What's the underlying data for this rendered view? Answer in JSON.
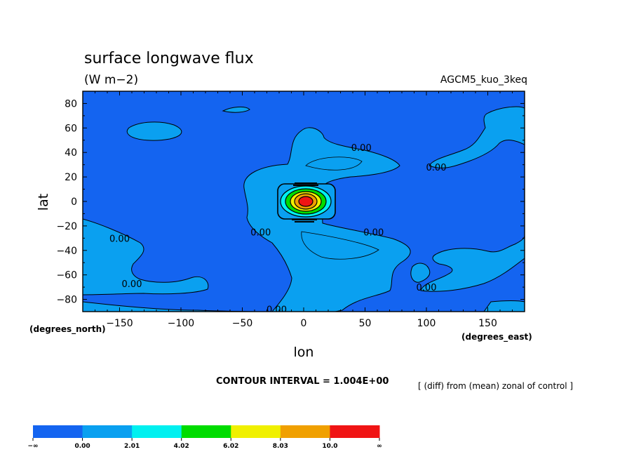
{
  "chart_data": {
    "type": "heatmap",
    "title": "surface longwave flux",
    "units": "(W m−2)",
    "model": "AGCM5_kuo_3keq",
    "xlabel": "lon",
    "ylabel": "lat",
    "xunits": "(degrees_east)",
    "yunits": "(degrees_north)",
    "xlim": [
      -180,
      180
    ],
    "ylim": [
      -90,
      90
    ],
    "xticks": [
      "−150",
      "−100",
      "−50",
      "0",
      "50",
      "100",
      "150"
    ],
    "xtick_values": [
      -150,
      -100,
      -50,
      0,
      50,
      100,
      150
    ],
    "yticks": [
      "80",
      "60",
      "40",
      "20",
      "0",
      "−20",
      "−40",
      "−60",
      "−80"
    ],
    "ytick_values": [
      80,
      60,
      40,
      20,
      0,
      -20,
      -40,
      -60,
      -80
    ],
    "contour_interval": "CONTOUR INTERVAL = 1.004E+00",
    "note": "[ (diff) from (mean) zonal of control ]",
    "contour_labels": [
      {
        "text": "0.00",
        "lon": 47,
        "lat": 44
      },
      {
        "text": "0.00",
        "lon": 108,
        "lat": 28
      },
      {
        "text": "0.00",
        "lon": -150,
        "lat": -30
      },
      {
        "text": "0.00",
        "lon": -35,
        "lat": -25
      },
      {
        "text": "0.00",
        "lon": 57,
        "lat": -25
      },
      {
        "text": "0.00",
        "lon": -140,
        "lat": -67
      },
      {
        "text": "0.00",
        "lon": 100,
        "lat": -70
      },
      {
        "text": "0.00",
        "lon": -22,
        "lat": -88
      }
    ],
    "levels": [
      "−∞",
      "0.00",
      "2.01",
      "4.02",
      "6.02",
      "8.03",
      "10.0",
      "∞"
    ],
    "level_colors": [
      "#1464f0",
      "#0aa0f0",
      "#00f0f0",
      "#00dc00",
      "#f0f000",
      "#f0a000",
      "#f01414"
    ],
    "field_summary": {
      "background_level": "below 0.00",
      "max_center": {
        "lon": 0,
        "lat": 0,
        "value_above": 10.0
      }
    }
  }
}
